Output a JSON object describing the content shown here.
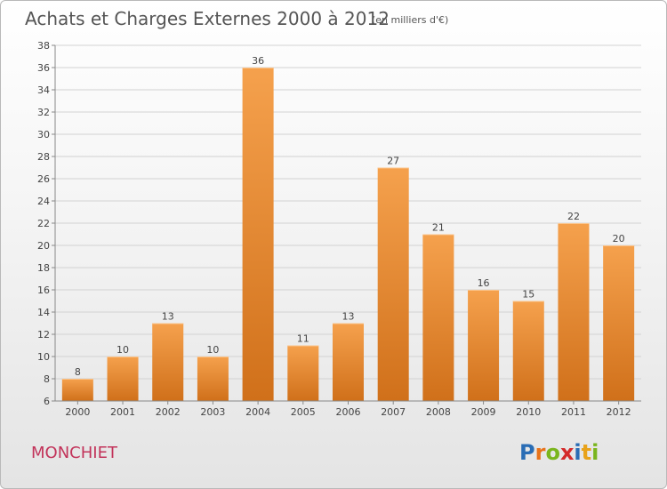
{
  "title": "Achats et Charges Externes 2000 à 2012",
  "subtitle": "(en milliers d'€)",
  "place_name": "MONCHIET",
  "logo": {
    "text": "Proxiti",
    "letters": [
      "P",
      "r",
      "o",
      "x",
      "i",
      "t",
      "i"
    ],
    "colors": [
      "#2a6db5",
      "#e8731a",
      "#7ab51d",
      "#d42a2a",
      "#2a6db5",
      "#e8a21a",
      "#7ab51d"
    ]
  },
  "colors": {
    "bar_top": "#f5a14d",
    "bar_bottom": "#d0701a",
    "grid": "#d2d2d2",
    "axis": "#888888",
    "place_name": "#c2335a"
  },
  "chart_data": {
    "type": "bar",
    "title": "Achats et Charges Externes 2000 à 2012",
    "subtitle": "(en milliers d'€)",
    "categories": [
      "2000",
      "2001",
      "2002",
      "2003",
      "2004",
      "2005",
      "2006",
      "2007",
      "2008",
      "2009",
      "2010",
      "2011",
      "2012"
    ],
    "values": [
      8,
      10,
      13,
      10,
      36,
      11,
      13,
      27,
      21,
      16,
      15,
      22,
      20
    ],
    "ylim": [
      6,
      38
    ],
    "yticks": [
      6,
      8,
      10,
      12,
      14,
      16,
      18,
      20,
      22,
      24,
      26,
      28,
      30,
      32,
      34,
      36,
      38
    ],
    "xlabel": "",
    "ylabel": "",
    "grid": true,
    "data_labels": true
  }
}
